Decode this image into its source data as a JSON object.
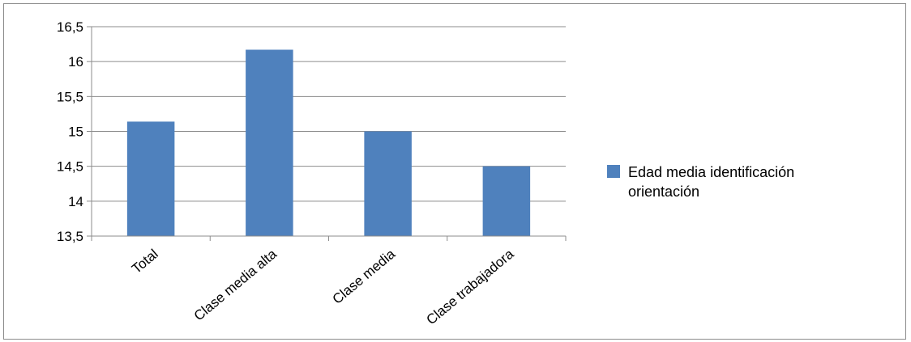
{
  "chart_data": {
    "type": "bar",
    "categories": [
      "Total",
      "Clase media alta",
      "Clase media",
      "Clase trabajadora"
    ],
    "series": [
      {
        "name": "Edad media identificación orientación",
        "values": [
          15.14,
          16.17,
          15.0,
          14.5
        ],
        "color": "#4f81bd"
      }
    ],
    "ylim": [
      13.5,
      16.5
    ],
    "yticks": [
      "13,5",
      "14",
      "14,5",
      "15",
      "15,5",
      "16",
      "16,5"
    ],
    "ytick_values": [
      13.5,
      14,
      14.5,
      15,
      15.5,
      16,
      16.5
    ],
    "grid": true,
    "legend": {
      "position": "right",
      "lines": [
        "Edad media identificación",
        "orientación"
      ]
    }
  }
}
